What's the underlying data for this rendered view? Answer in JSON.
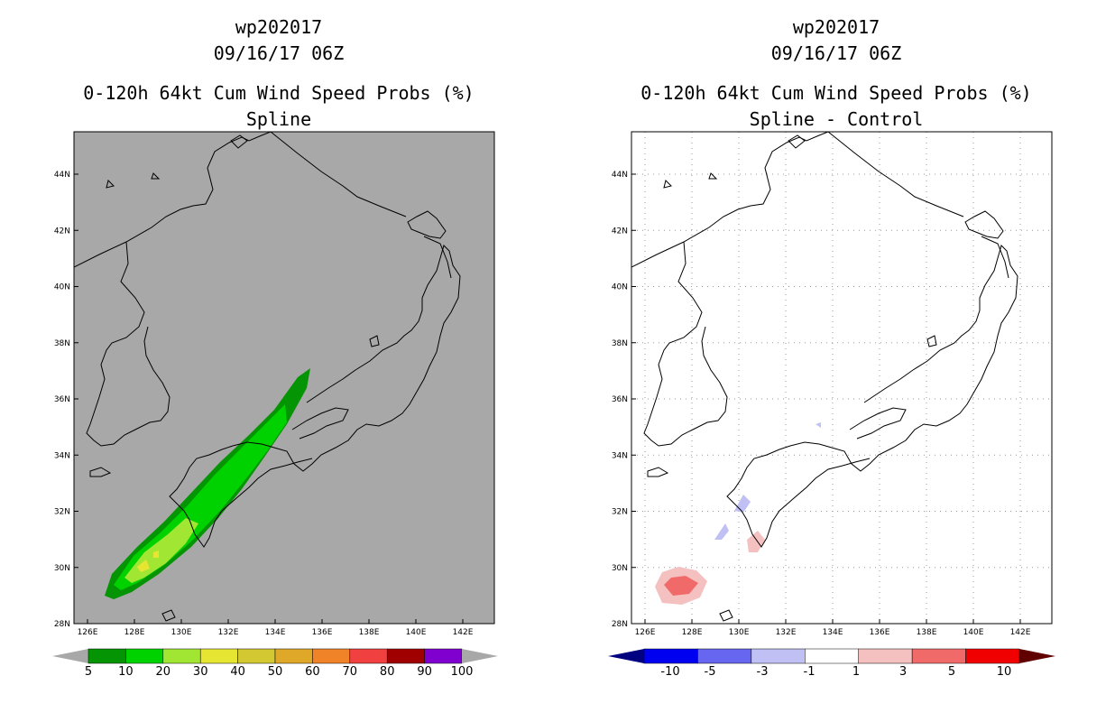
{
  "left_panel": {
    "title_id": "wp202017",
    "title_time": "09/16/17 06Z",
    "title_product": "0-120h 64kt Cum Wind Speed Probs (%)",
    "title_method": "Spline",
    "lat_labels": [
      "44N",
      "42N",
      "40N",
      "38N",
      "36N",
      "34N",
      "32N",
      "30N",
      "28N"
    ],
    "lon_labels": [
      "126E",
      "128E",
      "130E",
      "132E",
      "134E",
      "136E",
      "138E",
      "140E",
      "142E"
    ],
    "colorbar_labels": [
      "5",
      "10",
      "20",
      "30",
      "40",
      "50",
      "60",
      "70",
      "80",
      "90",
      "100"
    ],
    "colorbar_colors": [
      "#049404",
      "#00d200",
      "#a0e632",
      "#e6e632",
      "#d4c832",
      "#e0a828",
      "#f08228",
      "#f04040",
      "#a00000",
      "#8000d0"
    ],
    "ocean_color": "#a8a8a8"
  },
  "right_panel": {
    "title_id": "wp202017",
    "title_time": "09/16/17 06Z",
    "title_product": "0-120h 64kt Cum Wind Speed Probs (%)",
    "title_method": "Spline - Control",
    "lat_labels": [
      "44N",
      "42N",
      "40N",
      "38N",
      "36N",
      "34N",
      "32N",
      "30N",
      "28N"
    ],
    "lon_labels": [
      "126E",
      "128E",
      "130E",
      "132E",
      "134E",
      "136E",
      "138E",
      "140E",
      "142E"
    ],
    "colorbar_labels": [
      "-10",
      "-5",
      "-3",
      "-1",
      "1",
      "3",
      "5",
      "10"
    ],
    "colorbar_colors": [
      "#0000f0",
      "#6666f0",
      "#c0c0f4",
      "#ffffff",
      "#f4c0c0",
      "#f06a6a",
      "#f00000"
    ]
  }
}
